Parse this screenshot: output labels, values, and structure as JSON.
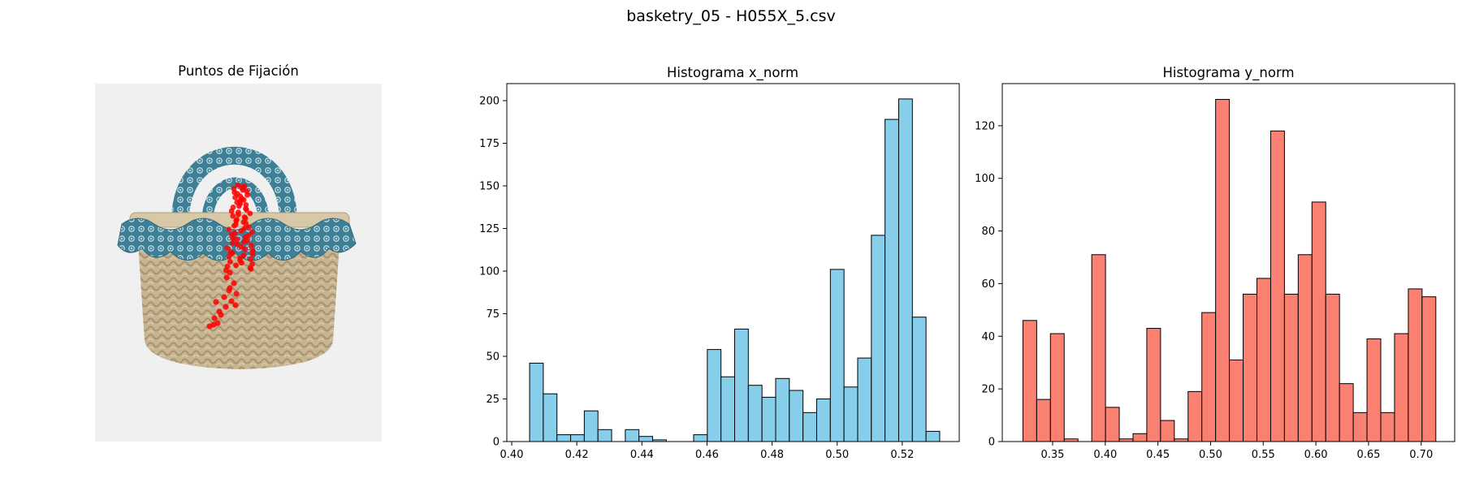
{
  "figure": {
    "suptitle": "basketry_05 - H055X_5.csv"
  },
  "image_panel": {
    "title": "Puntos de Fijación",
    "image_description_icon": "basket-with-blue-patterned-fabric-icon",
    "fixation_color": "#ff0000"
  },
  "chart_data": [
    {
      "type": "bar",
      "title": "Histograma x_norm",
      "xlabel": "",
      "ylabel": "",
      "bar_color": "#87ceeb",
      "edge_color": "#000000",
      "bin_start": 0.4055,
      "bin_width": 0.0042,
      "values": [
        46,
        28,
        4,
        4,
        18,
        7,
        0,
        7,
        3,
        1,
        0,
        0,
        4,
        54,
        38,
        66,
        33,
        26,
        37,
        30,
        17,
        25,
        101,
        32,
        49,
        121,
        189,
        201,
        73,
        6
      ],
      "xlim": [
        0.3985,
        0.5375
      ],
      "ylim": [
        0,
        210
      ],
      "xticks": [
        0.4,
        0.42,
        0.44,
        0.46,
        0.48,
        0.5,
        0.52
      ],
      "xtick_labels": [
        "0.40",
        "0.42",
        "0.44",
        "0.46",
        "0.48",
        "0.50",
        "0.52"
      ],
      "yticks": [
        0,
        25,
        50,
        75,
        100,
        125,
        150,
        175,
        200
      ],
      "ytick_labels": [
        "0",
        "25",
        "50",
        "75",
        "100",
        "125",
        "150",
        "175",
        "200"
      ]
    },
    {
      "type": "bar",
      "title": "Histograma y_norm",
      "xlabel": "",
      "ylabel": "",
      "bar_color": "#fa8072",
      "edge_color": "#000000",
      "bin_start": 0.3218,
      "bin_width": 0.01307,
      "values": [
        46,
        16,
        41,
        1,
        0,
        71,
        13,
        1,
        3,
        43,
        8,
        1,
        19,
        49,
        130,
        31,
        56,
        62,
        118,
        56,
        71,
        91,
        56,
        22,
        11,
        39,
        11,
        41,
        58,
        55
      ],
      "xlim": [
        0.3022,
        0.7318
      ],
      "ylim": [
        0,
        136
      ],
      "xticks": [
        0.35,
        0.4,
        0.45,
        0.5,
        0.55,
        0.6,
        0.65,
        0.7
      ],
      "xtick_labels": [
        "0.35",
        "0.40",
        "0.45",
        "0.50",
        "0.55",
        "0.60",
        "0.65",
        "0.70"
      ],
      "yticks": [
        0,
        20,
        40,
        60,
        80,
        100,
        120
      ],
      "ytick_labels": [
        "0",
        "20",
        "40",
        "60",
        "80",
        "100",
        "120"
      ]
    }
  ]
}
